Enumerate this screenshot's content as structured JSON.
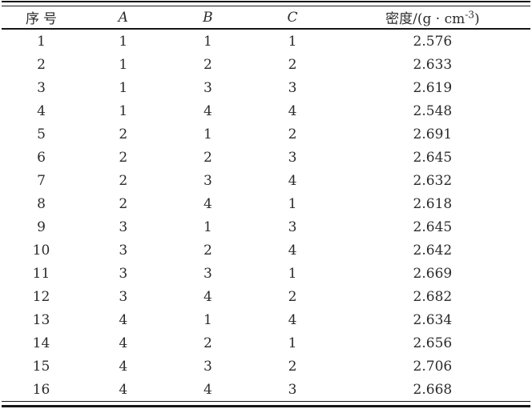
{
  "page": {
    "background": "#ffffff",
    "text_color": "#2b2b2b",
    "rule_color": "#161616"
  },
  "table": {
    "headers": {
      "serial": "序号",
      "factor_a": "A",
      "factor_b": "B",
      "factor_c": "C",
      "density_base": "密度/(g · cm",
      "density_sup": "-3",
      "density_close": ")"
    },
    "rows": [
      {
        "no": "1",
        "a": "1",
        "b": "1",
        "c": "1",
        "density": "2.576"
      },
      {
        "no": "2",
        "a": "1",
        "b": "2",
        "c": "2",
        "density": "2.633"
      },
      {
        "no": "3",
        "a": "1",
        "b": "3",
        "c": "3",
        "density": "2.619"
      },
      {
        "no": "4",
        "a": "1",
        "b": "4",
        "c": "4",
        "density": "2.548"
      },
      {
        "no": "5",
        "a": "2",
        "b": "1",
        "c": "2",
        "density": "2.691"
      },
      {
        "no": "6",
        "a": "2",
        "b": "2",
        "c": "3",
        "density": "2.645"
      },
      {
        "no": "7",
        "a": "2",
        "b": "3",
        "c": "4",
        "density": "2.632"
      },
      {
        "no": "8",
        "a": "2",
        "b": "4",
        "c": "1",
        "density": "2.618"
      },
      {
        "no": "9",
        "a": "3",
        "b": "1",
        "c": "3",
        "density": "2.645"
      },
      {
        "no": "10",
        "a": "3",
        "b": "2",
        "c": "4",
        "density": "2.642"
      },
      {
        "no": "11",
        "a": "3",
        "b": "3",
        "c": "1",
        "density": "2.669"
      },
      {
        "no": "12",
        "a": "3",
        "b": "4",
        "c": "2",
        "density": "2.682"
      },
      {
        "no": "13",
        "a": "4",
        "b": "1",
        "c": "4",
        "density": "2.634"
      },
      {
        "no": "14",
        "a": "4",
        "b": "2",
        "c": "1",
        "density": "2.656"
      },
      {
        "no": "15",
        "a": "4",
        "b": "3",
        "c": "2",
        "density": "2.706"
      },
      {
        "no": "16",
        "a": "4",
        "b": "4",
        "c": "3",
        "density": "2.668"
      }
    ]
  }
}
